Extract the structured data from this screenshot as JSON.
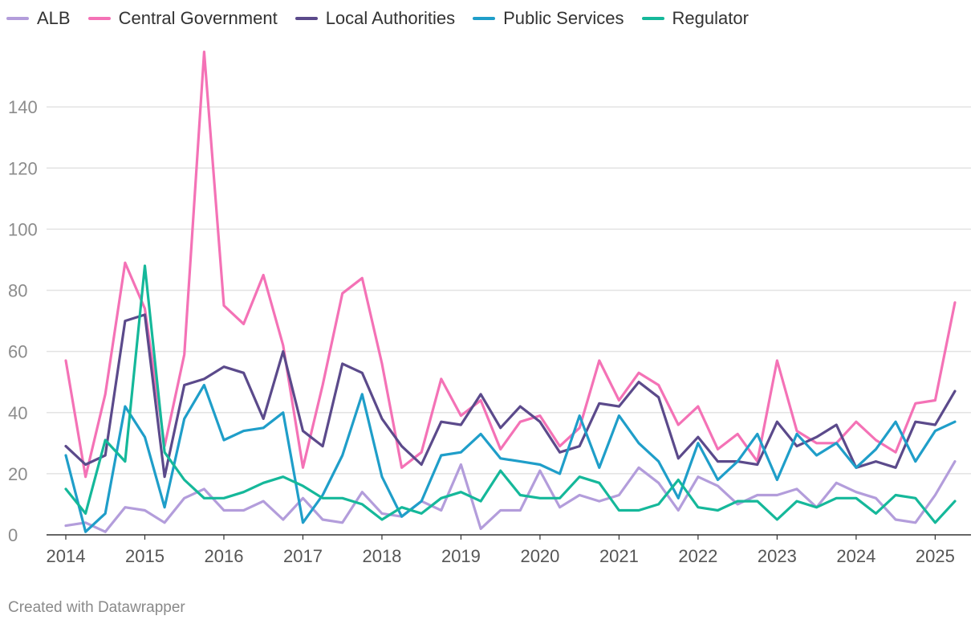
{
  "chart_data": {
    "type": "line",
    "title": "",
    "xlabel": "",
    "ylabel": "",
    "ylim": [
      0,
      160
    ],
    "yticks": [
      0,
      20,
      40,
      60,
      80,
      100,
      120,
      140
    ],
    "xlim": [
      2014,
      2025.25
    ],
    "x_tick_labels": [
      "2014",
      "2015",
      "2016",
      "2017",
      "2018",
      "2019",
      "2020",
      "2021",
      "2022",
      "2023",
      "2024",
      "2025"
    ],
    "x": [
      2014.0,
      2014.25,
      2014.5,
      2014.75,
      2015.0,
      2015.25,
      2015.5,
      2015.75,
      2016.0,
      2016.25,
      2016.5,
      2016.75,
      2017.0,
      2017.25,
      2017.5,
      2017.75,
      2018.0,
      2018.25,
      2018.5,
      2018.75,
      2019.0,
      2019.25,
      2019.5,
      2019.75,
      2020.0,
      2020.25,
      2020.5,
      2020.75,
      2021.0,
      2021.25,
      2021.5,
      2021.75,
      2022.0,
      2022.25,
      2022.5,
      2022.75,
      2023.0,
      2023.25,
      2023.5,
      2023.75,
      2024.0,
      2024.25,
      2024.5,
      2024.75,
      2025.0,
      2025.25
    ],
    "series": [
      {
        "name": "ALB",
        "color": "#b39ddb",
        "values": [
          3,
          4,
          1,
          9,
          8,
          4,
          12,
          15,
          8,
          8,
          11,
          5,
          12,
          5,
          4,
          14,
          7,
          6,
          11,
          8,
          23,
          2,
          8,
          8,
          21,
          9,
          13,
          11,
          13,
          22,
          17,
          8,
          19,
          16,
          10,
          13,
          13,
          15,
          9,
          17,
          14,
          12,
          5,
          4,
          13,
          24
        ]
      },
      {
        "name": "Central Government",
        "color": "#f472b6",
        "values": [
          57,
          19,
          46,
          89,
          74,
          29,
          59,
          158,
          75,
          69,
          85,
          62,
          22,
          49,
          79,
          84,
          56,
          22,
          27,
          51,
          39,
          44,
          28,
          37,
          39,
          29,
          35,
          57,
          44,
          53,
          49,
          36,
          42,
          28,
          33,
          24,
          57,
          34,
          30,
          30,
          37,
          31,
          27,
          43,
          44,
          76
        ]
      },
      {
        "name": "Local Authorities",
        "color": "#5b4a8b",
        "values": [
          29,
          23,
          26,
          70,
          72,
          19,
          49,
          51,
          55,
          53,
          38,
          60,
          34,
          29,
          56,
          53,
          38,
          29,
          23,
          37,
          36,
          46,
          35,
          42,
          37,
          27,
          29,
          43,
          42,
          50,
          45,
          25,
          32,
          24,
          24,
          23,
          37,
          29,
          32,
          36,
          22,
          24,
          22,
          37,
          36,
          47
        ]
      },
      {
        "name": "Public Services",
        "color": "#1f9ec9",
        "values": [
          26,
          1,
          7,
          42,
          32,
          9,
          38,
          49,
          31,
          34,
          35,
          40,
          4,
          13,
          26,
          46,
          19,
          6,
          11,
          26,
          27,
          33,
          25,
          24,
          23,
          20,
          39,
          22,
          39,
          30,
          24,
          12,
          30,
          18,
          24,
          33,
          18,
          33,
          26,
          30,
          22,
          28,
          37,
          24,
          34,
          37
        ]
      },
      {
        "name": "Regulator",
        "color": "#15b89a",
        "values": [
          15,
          7,
          31,
          24,
          88,
          27,
          18,
          12,
          12,
          14,
          17,
          19,
          16,
          12,
          12,
          10,
          5,
          9,
          7,
          12,
          14,
          11,
          21,
          13,
          12,
          12,
          19,
          17,
          8,
          8,
          10,
          18,
          9,
          8,
          11,
          11,
          5,
          11,
          9,
          12,
          12,
          7,
          13,
          12,
          4,
          11
        ]
      }
    ]
  },
  "legend_heading": "",
  "footer": {
    "credit": "Created with Datawrapper"
  }
}
